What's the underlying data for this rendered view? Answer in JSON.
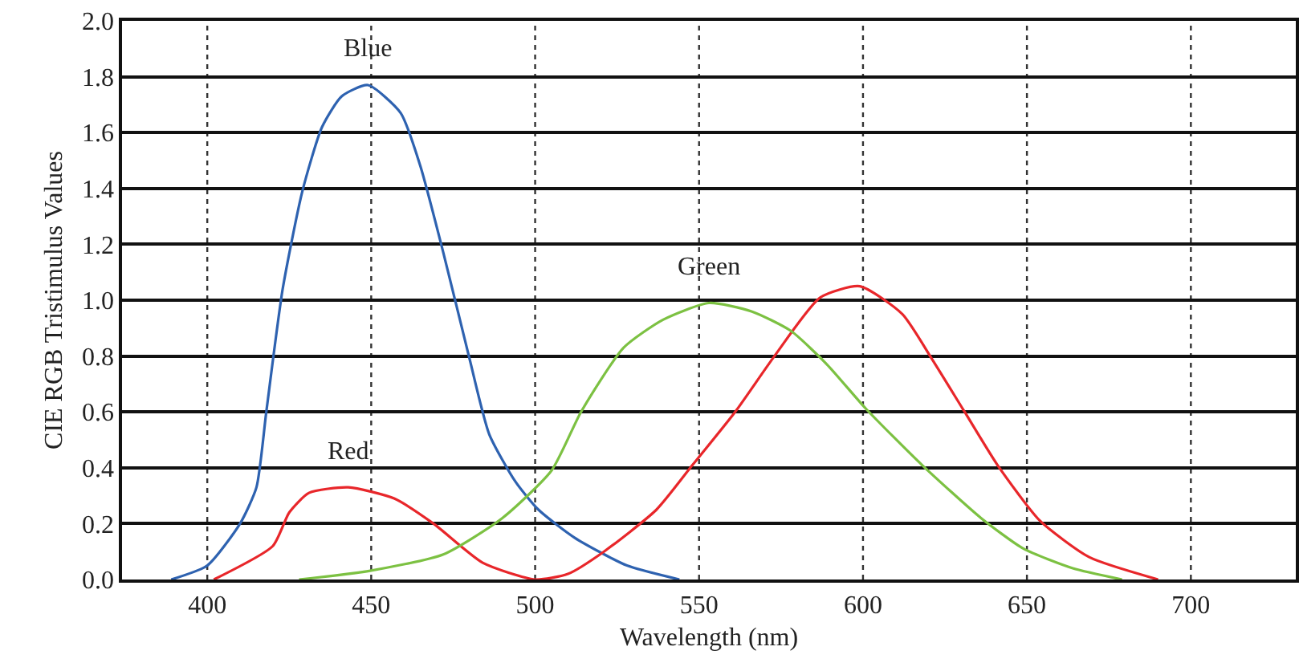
{
  "chart_data": {
    "type": "line",
    "xlabel": "Wavelength (nm)",
    "ylabel": "CIE RGB Tristimulus Values",
    "xlim": [
      374,
      732
    ],
    "xticks": [
      400,
      450,
      500,
      550,
      600,
      650,
      700
    ],
    "ylim": [
      0,
      2
    ],
    "yticks": [
      {
        "value": 0,
        "label": "0.0"
      },
      {
        "value": 0.2,
        "label": "0.2"
      },
      {
        "value": 0.4,
        "label": "0.4"
      },
      {
        "value": 0.6,
        "label": "0.6"
      },
      {
        "value": 0.8,
        "label": "0.8"
      },
      {
        "value": 1,
        "label": "1.0"
      },
      {
        "value": 1.2,
        "label": "1.2"
      },
      {
        "value": 1.4,
        "label": "1.4"
      },
      {
        "value": 1.6,
        "label": "1.6"
      },
      {
        "value": 1.8,
        "label": "1.8"
      },
      {
        "value": 2,
        "label": "2.0"
      }
    ],
    "grid": true,
    "line_style": "solid",
    "series": [
      {
        "color": "#2e62b0",
        "x": [
          389,
          400,
          410,
          415,
          418,
          423,
          429,
          435,
          441,
          449,
          459,
          465,
          472,
          480,
          486,
          494,
          501,
          512,
          528,
          544
        ],
        "values": [
          0,
          0.05,
          0.2,
          0.33,
          0.6,
          1.04,
          1.39,
          1.62,
          1.73,
          1.77,
          1.67,
          1.48,
          1.17,
          0.79,
          0.52,
          0.35,
          0.25,
          0.15,
          0.05,
          0
        ]
      },
      {
        "color": "#e8262a",
        "x": [
          402,
          420,
          425,
          431,
          443,
          457,
          469,
          484,
          500,
          510,
          521,
          537,
          548,
          561,
          573,
          587,
          599,
          612,
          621,
          631,
          641,
          654,
          669,
          690
        ],
        "values": [
          0,
          0.12,
          0.24,
          0.31,
          0.33,
          0.29,
          0.2,
          0.06,
          0,
          0.02,
          0.1,
          0.25,
          0.41,
          0.6,
          0.8,
          1.01,
          1.05,
          0.95,
          0.79,
          0.6,
          0.41,
          0.21,
          0.08,
          0
        ]
      },
      {
        "color": "#7cc142",
        "x": [
          428,
          449,
          472,
          490,
          505,
          514,
          527,
          539,
          553,
          566,
          578,
          589,
          601,
          618,
          636,
          649,
          664,
          679
        ],
        "values": [
          0,
          0.03,
          0.09,
          0.22,
          0.39,
          0.6,
          0.83,
          0.93,
          0.99,
          0.96,
          0.89,
          0.77,
          0.61,
          0.41,
          0.22,
          0.11,
          0.04,
          0
        ]
      }
    ],
    "annotations": [
      {
        "text": "Blue",
        "x": 449,
        "y": 1.77
      },
      {
        "text": "Red",
        "x": 443,
        "y": 0.33
      },
      {
        "text": "Green",
        "x": 553,
        "y": 0.99
      }
    ]
  }
}
